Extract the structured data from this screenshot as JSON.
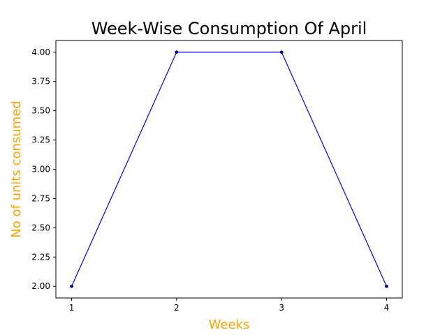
{
  "chart_data": {
    "type": "line",
    "title": "Week-Wise Consumption Of April",
    "xlabel": "Weeks",
    "ylabel": "No of units consumed",
    "x": [
      1,
      2,
      3,
      4
    ],
    "xtick_labels": [
      "1",
      "2",
      "3",
      "4"
    ],
    "series": [
      {
        "values": [
          2.0,
          4.0,
          4.0,
          2.0
        ]
      }
    ],
    "xlim": [
      0.85,
      4.15
    ],
    "ylim": [
      1.9,
      4.1
    ],
    "yticks": [
      2.0,
      2.25,
      2.5,
      2.75,
      3.0,
      3.25,
      3.5,
      3.75,
      4.0
    ],
    "ytick_labels": [
      "2.00",
      "2.25",
      "2.50",
      "2.75",
      "3.00",
      "3.25",
      "3.50",
      "3.75",
      "4.00"
    ],
    "grid": false,
    "colors": {
      "line": "#0000ff",
      "marker": "#00008b",
      "axis_label": "#ffa500"
    }
  }
}
